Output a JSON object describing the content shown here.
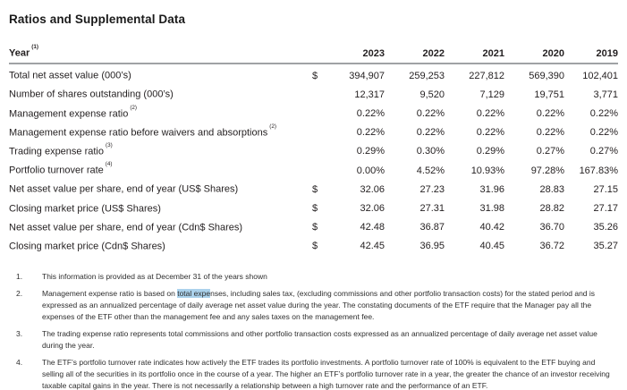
{
  "title": "Ratios and Supplemental Data",
  "colors": {
    "selection_highlight": "#abd2ec",
    "header_rule": "#a0a2a5"
  },
  "table": {
    "header": {
      "label": "Year",
      "sup": "(1)",
      "years": [
        "2023",
        "2022",
        "2021",
        "2020",
        "2019"
      ]
    },
    "rows": [
      {
        "label": "Total net asset value (000’s)",
        "sup": "",
        "currency": "$",
        "values": [
          "394,907",
          "259,253",
          "227,812",
          "569,390",
          "102,401"
        ]
      },
      {
        "label": "Number of shares outstanding (000’s)",
        "sup": "",
        "currency": "",
        "values": [
          "12,317",
          "9,520",
          "7,129",
          "19,751",
          "3,771"
        ]
      },
      {
        "label": "Management expense ratio",
        "sup": "(2)",
        "currency": "",
        "values": [
          "0.22%",
          "0.22%",
          "0.22%",
          "0.22%",
          "0.22%"
        ]
      },
      {
        "label": "Management expense ratio before waivers and absorptions",
        "sup": "(2)",
        "currency": "",
        "values": [
          "0.22%",
          "0.22%",
          "0.22%",
          "0.22%",
          "0.22%"
        ]
      },
      {
        "label": "Trading expense ratio",
        "sup": "(3)",
        "currency": "",
        "values": [
          "0.29%",
          "0.30%",
          "0.29%",
          "0.27%",
          "0.27%"
        ]
      },
      {
        "label": "Portfolio turnover rate",
        "sup": "(4)",
        "currency": "",
        "values": [
          "0.00%",
          "4.52%",
          "10.93%",
          "97.28%",
          "167.83%"
        ]
      },
      {
        "label": "Net asset value per share, end of year (US$ Shares)",
        "sup": "",
        "currency": "$",
        "values": [
          "32.06",
          "27.23",
          "31.96",
          "28.83",
          "27.15"
        ]
      },
      {
        "label": "Closing market price (US$ Shares)",
        "sup": "",
        "currency": "$",
        "values": [
          "32.06",
          "27.31",
          "31.98",
          "28.82",
          "27.17"
        ]
      },
      {
        "label": "Net asset value per share, end of year (Cdn$ Shares)",
        "sup": "",
        "currency": "$",
        "values": [
          "42.48",
          "36.87",
          "40.42",
          "36.70",
          "35.26"
        ]
      },
      {
        "label": "Closing market price (Cdn$ Shares)",
        "sup": "",
        "currency": "$",
        "values": [
          "42.45",
          "36.95",
          "40.45",
          "36.72",
          "35.27"
        ]
      }
    ]
  },
  "footnotes": [
    {
      "num": "1.",
      "text": "This information is provided as at December 31 of the years shown"
    },
    {
      "num": "2.",
      "parts": [
        "Management expense ratio is based on ",
        "total expe",
        "nses, including sales tax, (excluding commissions and other portfolio transaction costs) for the stated period and is expressed as an annualized percentage of daily average net asset value during the year. The constating documents of the ETF require that the Manager pay all the expenses of the ETF other than the management fee and any sales taxes on the management fee."
      ]
    },
    {
      "num": "3.",
      "text": "The trading expense ratio represents total commissions and other portfolio transaction costs expressed as an annualized percentage of daily average net asset value during the year."
    },
    {
      "num": "4.",
      "text": "The ETF’s portfolio turnover rate indicates how actively the ETF trades its portfolio investments. A portfolio turnover rate of 100% is equivalent to the ETF buying and selling all of the securities in its portfolio once in the course of a year. The higher an ETF’s portfolio turnover rate in a year, the greater the chance of an investor receiving taxable capital gains in the year. There is not necessarily a relationship between a high turnover rate and the performance of an ETF."
    }
  ]
}
